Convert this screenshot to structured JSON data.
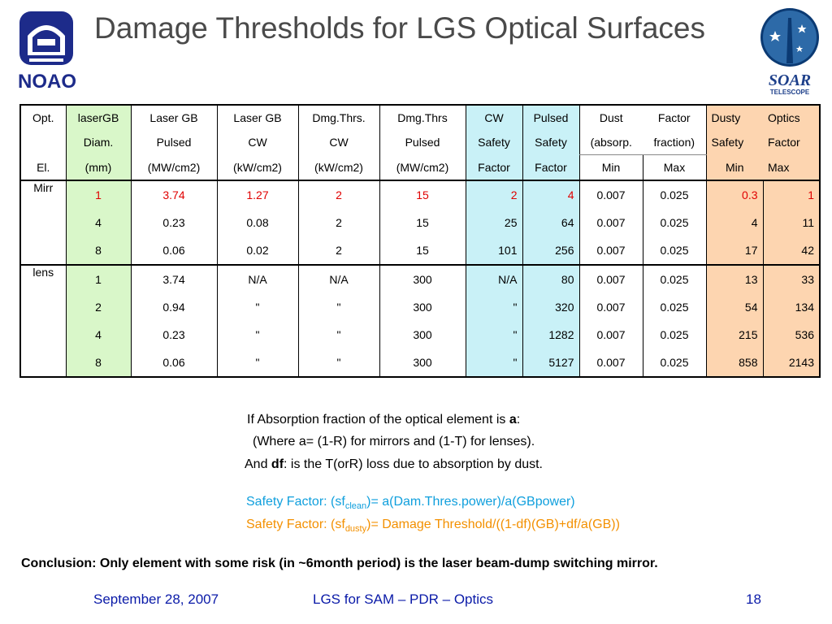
{
  "slide": {
    "title": "Damage Thresholds for LGS Optical Surfaces",
    "noao_logo_text": "NOAO",
    "soar_logo_text": "SOAR",
    "soar_logo_sub": "TELESCOPE"
  },
  "table": {
    "header_rows": [
      [
        "Opt.",
        "laserGB",
        "Laser GB",
        "Laser GB",
        "Dmg.Thrs.",
        "Dmg.Thrs",
        "CW",
        "Pulsed",
        "Dust",
        "Factor",
        "Dusty",
        "Optics"
      ],
      [
        "",
        "Diam.",
        "Pulsed",
        "CW",
        "CW",
        "Pulsed",
        "Safety",
        "Safety",
        "(absorp.",
        "fraction)",
        "Safety",
        "Factor"
      ],
      [
        "El.",
        "(mm)",
        "(MW/cm2)",
        "(kW/cm2)",
        "(kW/cm2)",
        "(MW/cm2)",
        "Factor",
        "Factor",
        "Min",
        "Max",
        "Min",
        "Max"
      ]
    ],
    "groups": [
      {
        "label": "Mirr",
        "rows": [
          [
            "1",
            "3.74",
            "1.27",
            "2",
            "15",
            "2",
            "4",
            "0.007",
            "0.025",
            "0.3",
            "1"
          ],
          [
            "4",
            "0.23",
            "0.08",
            "2",
            "15",
            "25",
            "64",
            "0.007",
            "0.025",
            "4",
            "11"
          ],
          [
            "8",
            "0.06",
            "0.02",
            "2",
            "15",
            "101",
            "256",
            "0.007",
            "0.025",
            "17",
            "42"
          ]
        ]
      },
      {
        "label": "lens",
        "rows": [
          [
            "1",
            "3.74",
            "N/A",
            "N/A",
            "300",
            "N/A",
            "80",
            "0.007",
            "0.025",
            "13",
            "33"
          ],
          [
            "2",
            "0.94",
            "\"",
            "\"",
            "300",
            "\"",
            "320",
            "0.007",
            "0.025",
            "54",
            "134"
          ],
          [
            "4",
            "0.23",
            "\"",
            "\"",
            "300",
            "\"",
            "1282",
            "0.007",
            "0.025",
            "215",
            "536"
          ],
          [
            "8",
            "0.06",
            "\"",
            "\"",
            "300",
            "\"",
            "5127",
            "0.007",
            "0.025",
            "858",
            "2143"
          ]
        ]
      }
    ]
  },
  "notes": {
    "line1_pre": "If Absorption fraction of the optical element is ",
    "line1_bold": "a",
    "line1_post": ":",
    "line2": "(Where a= (1-R) for mirrors and (1-T) for lenses).",
    "line3_pre": "And ",
    "line3_bold": "df",
    "line3_post": ": is the T(orR) loss due to absorption by dust.",
    "sf_clean_pre": "Safety Factor: (sf",
    "sf_clean_sub": "clean",
    "sf_clean_post": ")= a(Dam.Thres.power)/a(GBpower)",
    "sf_dusty_pre": "Safety Factor: (sf",
    "sf_dusty_sub": "dusty",
    "sf_dusty_post": ")= Damage Threshold/((1-df)(GB)+df/a(GB))"
  },
  "conclusion": "Conclusion: Only element with some risk (in ~6month period) is the laser beam-dump switching mirror.",
  "footer": {
    "date": "September 28, 2007",
    "center": "LGS for SAM – PDR – Optics",
    "page": "18"
  },
  "colors": {
    "title": "#4a4a4a",
    "green_band": "#d9f7c9",
    "cyan_band": "#c9f1f7",
    "orange_band": "#fdd5b0",
    "highlight_red": "#e00000",
    "footer_blue": "#0a1aa8",
    "sf_clean": "#0f9fdd",
    "sf_dusty": "#f39000"
  }
}
